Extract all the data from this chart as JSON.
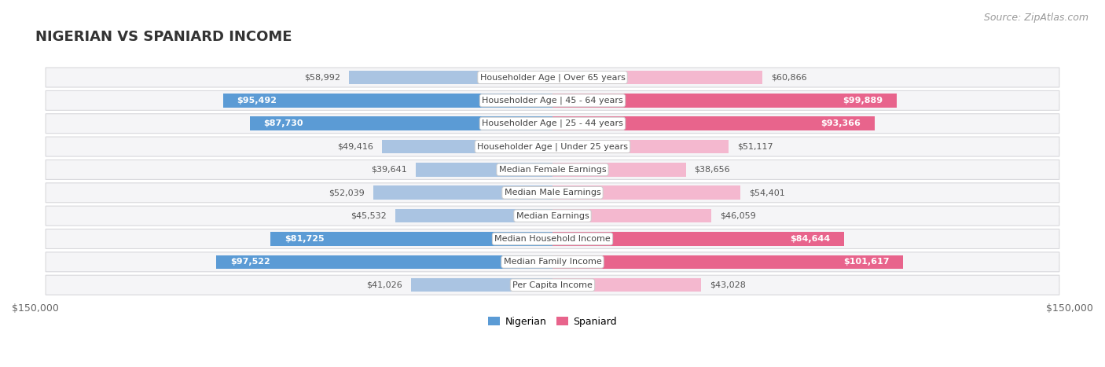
{
  "title": "NIGERIAN VS SPANIARD INCOME",
  "source": "Source: ZipAtlas.com",
  "categories": [
    "Per Capita Income",
    "Median Family Income",
    "Median Household Income",
    "Median Earnings",
    "Median Male Earnings",
    "Median Female Earnings",
    "Householder Age | Under 25 years",
    "Householder Age | 25 - 44 years",
    "Householder Age | 45 - 64 years",
    "Householder Age | Over 65 years"
  ],
  "nigerian_values": [
    41026,
    97522,
    81725,
    45532,
    52039,
    39641,
    49416,
    87730,
    95492,
    58992
  ],
  "spaniard_values": [
    43028,
    101617,
    84644,
    46059,
    54401,
    38656,
    51117,
    93366,
    99889,
    60866
  ],
  "nigerian_labels": [
    "$41,026",
    "$97,522",
    "$81,725",
    "$45,532",
    "$52,039",
    "$39,641",
    "$49,416",
    "$87,730",
    "$95,492",
    "$58,992"
  ],
  "spaniard_labels": [
    "$43,028",
    "$101,617",
    "$84,644",
    "$46,059",
    "$54,401",
    "$38,656",
    "$51,117",
    "$93,366",
    "$99,889",
    "$60,866"
  ],
  "nigerian_color_light": "#aac4e2",
  "nigerian_color_dark": "#5b9bd5",
  "spaniard_color_light": "#f4b8cf",
  "spaniard_color_dark": "#e8648c",
  "row_bg_color": "#f5f5f7",
  "max_value": 150000,
  "nigerian_inside_threshold": 70000,
  "spaniard_inside_threshold": 70000,
  "legend_nigerian": "Nigerian",
  "legend_spaniard": "Spaniard",
  "title_fontsize": 13,
  "source_fontsize": 9,
  "bar_label_fontsize": 8,
  "category_fontsize": 8,
  "axis_label_fontsize": 9
}
